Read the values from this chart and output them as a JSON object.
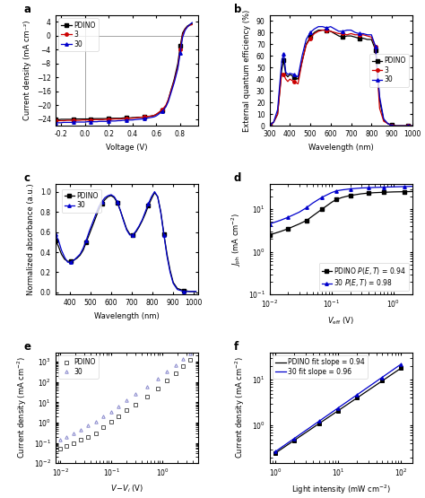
{
  "panel_a": {
    "title": "a",
    "xlabel": "Voltage (V)",
    "ylabel": "Current density (mA cm⁻²)",
    "xlim": [
      -0.25,
      0.95
    ],
    "ylim": [
      -26,
      6
    ],
    "xticks": [
      -0.2,
      0.0,
      0.2,
      0.4,
      0.6,
      0.8
    ],
    "yticks": [
      4,
      0,
      -4,
      -8,
      -12,
      -16,
      -20,
      -24
    ],
    "lines": {
      "PDINO": {
        "color": "black",
        "marker": "s",
        "x": [
          -0.25,
          -0.22,
          -0.2,
          -0.18,
          -0.15,
          -0.12,
          -0.1,
          -0.08,
          -0.05,
          -0.02,
          0.0,
          0.02,
          0.05,
          0.08,
          0.1,
          0.12,
          0.15,
          0.18,
          0.2,
          0.22,
          0.25,
          0.28,
          0.3,
          0.32,
          0.35,
          0.38,
          0.4,
          0.42,
          0.45,
          0.48,
          0.5,
          0.52,
          0.55,
          0.58,
          0.6,
          0.62,
          0.65,
          0.68,
          0.7,
          0.72,
          0.75,
          0.78,
          0.8,
          0.82,
          0.84,
          0.86,
          0.88,
          0.9
        ],
        "y": [
          -24.2,
          -24.2,
          -24.1,
          -24.1,
          -24.1,
          -24.1,
          -24.1,
          -24.0,
          -24.0,
          -24.0,
          -24.0,
          -24.0,
          -24.0,
          -23.9,
          -23.9,
          -23.9,
          -23.9,
          -23.9,
          -23.9,
          -23.8,
          -23.8,
          -23.8,
          -23.8,
          -23.7,
          -23.7,
          -23.7,
          -23.6,
          -23.6,
          -23.5,
          -23.5,
          -23.4,
          -23.3,
          -23.2,
          -23.0,
          -22.7,
          -22.2,
          -21.5,
          -20.3,
          -18.5,
          -16.0,
          -12.5,
          -8.0,
          -3.0,
          0.8,
          2.0,
          2.8,
          3.2,
          3.5
        ]
      },
      "3": {
        "color": "#cc0000",
        "marker": "o",
        "x": [
          -0.25,
          -0.22,
          -0.2,
          -0.18,
          -0.15,
          -0.12,
          -0.1,
          -0.08,
          -0.05,
          -0.02,
          0.0,
          0.02,
          0.05,
          0.08,
          0.1,
          0.12,
          0.15,
          0.18,
          0.2,
          0.22,
          0.25,
          0.28,
          0.3,
          0.32,
          0.35,
          0.38,
          0.4,
          0.42,
          0.45,
          0.48,
          0.5,
          0.52,
          0.55,
          0.58,
          0.6,
          0.62,
          0.65,
          0.68,
          0.7,
          0.72,
          0.75,
          0.78,
          0.8,
          0.82,
          0.84,
          0.86,
          0.88,
          0.9
        ],
        "y": [
          -24.5,
          -24.5,
          -24.5,
          -24.5,
          -24.4,
          -24.4,
          -24.4,
          -24.4,
          -24.4,
          -24.3,
          -24.3,
          -24.3,
          -24.3,
          -24.2,
          -24.2,
          -24.2,
          -24.2,
          -24.1,
          -24.1,
          -24.1,
          -24.0,
          -24.0,
          -24.0,
          -23.9,
          -23.9,
          -23.8,
          -23.8,
          -23.7,
          -23.6,
          -23.5,
          -23.4,
          -23.3,
          -23.2,
          -23.0,
          -22.6,
          -22.1,
          -21.3,
          -20.0,
          -18.4,
          -16.2,
          -13.0,
          -9.0,
          -4.0,
          0.2,
          1.8,
          2.6,
          3.0,
          3.2
        ]
      },
      "30": {
        "color": "#0000cc",
        "marker": "^",
        "x": [
          -0.25,
          -0.22,
          -0.2,
          -0.18,
          -0.15,
          -0.12,
          -0.1,
          -0.08,
          -0.05,
          -0.02,
          0.0,
          0.02,
          0.05,
          0.08,
          0.1,
          0.12,
          0.15,
          0.18,
          0.2,
          0.22,
          0.25,
          0.28,
          0.3,
          0.32,
          0.35,
          0.38,
          0.4,
          0.42,
          0.45,
          0.48,
          0.5,
          0.52,
          0.55,
          0.58,
          0.6,
          0.62,
          0.65,
          0.68,
          0.7,
          0.72,
          0.75,
          0.78,
          0.8,
          0.82,
          0.84,
          0.86,
          0.88,
          0.9
        ],
        "y": [
          -25.1,
          -25.1,
          -25.1,
          -25.0,
          -25.0,
          -25.0,
          -25.0,
          -24.9,
          -24.9,
          -24.9,
          -24.9,
          -24.8,
          -24.8,
          -24.8,
          -24.8,
          -24.7,
          -24.7,
          -24.7,
          -24.6,
          -24.6,
          -24.6,
          -24.5,
          -24.5,
          -24.4,
          -24.4,
          -24.3,
          -24.3,
          -24.2,
          -24.1,
          -24.0,
          -23.9,
          -23.8,
          -23.6,
          -23.4,
          -23.1,
          -22.6,
          -21.8,
          -20.5,
          -19.0,
          -16.8,
          -13.5,
          -9.5,
          -5.0,
          -0.5,
          1.5,
          2.5,
          3.2,
          3.8
        ]
      }
    }
  },
  "panel_b": {
    "title": "b",
    "xlabel": "Wavelength (nm)",
    "ylabel": "External quantum efficiency (%)",
    "xlim": [
      300,
      1000
    ],
    "ylim": [
      0,
      95
    ],
    "xticks": [
      300,
      400,
      500,
      600,
      700,
      800,
      900,
      1000
    ],
    "yticks": [
      0,
      10,
      20,
      30,
      40,
      50,
      60,
      70,
      80,
      90
    ],
    "lines": {
      "PDINO": {
        "color": "black",
        "marker": "s",
        "x": [
          300,
          320,
          340,
          360,
          370,
          380,
          390,
          400,
          420,
          440,
          460,
          480,
          500,
          520,
          540,
          560,
          580,
          600,
          620,
          640,
          660,
          680,
          700,
          720,
          740,
          760,
          780,
          800,
          820,
          840,
          860,
          880,
          900,
          920,
          940,
          960,
          980,
          1000
        ],
        "y": [
          1,
          3,
          10,
          48,
          56,
          44,
          42,
          44,
          42,
          40,
          55,
          70,
          76,
          80,
          82,
          82,
          82,
          81,
          79,
          77,
          76,
          77,
          77,
          76,
          75,
          75,
          74,
          74,
          65,
          22,
          5,
          2,
          1,
          0,
          0,
          0,
          0,
          0
        ]
      },
      "3": {
        "color": "#cc0000",
        "marker": "o",
        "x": [
          300,
          320,
          340,
          360,
          370,
          380,
          390,
          400,
          420,
          440,
          460,
          480,
          500,
          520,
          540,
          560,
          580,
          600,
          620,
          640,
          660,
          680,
          700,
          720,
          740,
          760,
          780,
          800,
          820,
          840,
          860,
          880,
          900,
          920,
          940,
          960,
          980,
          1000
        ],
        "y": [
          1,
          3,
          10,
          45,
          44,
          40,
          38,
          40,
          38,
          36,
          55,
          69,
          75,
          79,
          81,
          82,
          82,
          81,
          80,
          79,
          79,
          78,
          79,
          78,
          78,
          78,
          77,
          76,
          68,
          15,
          4,
          2,
          0,
          0,
          0,
          0,
          0,
          0
        ]
      },
      "30": {
        "color": "#0000cc",
        "marker": "^",
        "x": [
          300,
          320,
          340,
          360,
          370,
          380,
          390,
          400,
          420,
          440,
          460,
          480,
          500,
          520,
          540,
          560,
          580,
          600,
          620,
          640,
          660,
          680,
          700,
          720,
          740,
          760,
          780,
          800,
          820,
          840,
          860,
          880,
          900,
          920,
          940,
          960,
          980,
          1000
        ],
        "y": [
          1,
          3,
          14,
          55,
          62,
          46,
          44,
          45,
          44,
          42,
          60,
          74,
          80,
          83,
          85,
          85,
          84,
          85,
          83,
          81,
          81,
          82,
          82,
          80,
          79,
          79,
          78,
          78,
          68,
          25,
          6,
          2,
          0,
          0,
          0,
          0,
          0,
          0
        ]
      }
    }
  },
  "panel_c": {
    "title": "c",
    "xlabel": "Wavelength (nm)",
    "ylabel": "Normalized absorbance (a.u.)",
    "xlim": [
      330,
      1020
    ],
    "ylim": [
      -0.02,
      1.08
    ],
    "xticks": [
      400,
      500,
      600,
      700,
      800,
      900,
      1000
    ],
    "yticks": [
      0.0,
      0.2,
      0.4,
      0.6,
      0.8,
      1.0
    ],
    "lines": {
      "PDINO": {
        "color": "black",
        "marker": "s",
        "x": [
          330,
          345,
          360,
          375,
          390,
          405,
          420,
          435,
          450,
          465,
          480,
          495,
          510,
          525,
          540,
          555,
          570,
          585,
          600,
          615,
          630,
          645,
          660,
          675,
          690,
          705,
          720,
          735,
          750,
          765,
          780,
          795,
          810,
          825,
          840,
          855,
          870,
          885,
          900,
          920,
          950,
          980,
          1010
        ],
        "y": [
          0.52,
          0.46,
          0.38,
          0.33,
          0.31,
          0.31,
          0.32,
          0.34,
          0.37,
          0.42,
          0.5,
          0.58,
          0.66,
          0.74,
          0.82,
          0.88,
          0.92,
          0.95,
          0.96,
          0.94,
          0.89,
          0.81,
          0.72,
          0.63,
          0.58,
          0.57,
          0.6,
          0.65,
          0.71,
          0.78,
          0.86,
          0.93,
          0.99,
          0.95,
          0.8,
          0.58,
          0.38,
          0.22,
          0.1,
          0.04,
          0.02,
          0.01,
          0.01
        ]
      },
      "30": {
        "color": "#0000cc",
        "marker": "^",
        "x": [
          330,
          345,
          360,
          375,
          390,
          405,
          420,
          435,
          450,
          465,
          480,
          495,
          510,
          525,
          540,
          555,
          570,
          585,
          600,
          615,
          630,
          645,
          660,
          675,
          690,
          705,
          720,
          735,
          750,
          765,
          780,
          795,
          810,
          825,
          840,
          855,
          870,
          885,
          900,
          920,
          950,
          980,
          1010
        ],
        "y": [
          0.58,
          0.52,
          0.42,
          0.35,
          0.3,
          0.3,
          0.32,
          0.35,
          0.38,
          0.44,
          0.52,
          0.61,
          0.69,
          0.77,
          0.85,
          0.9,
          0.94,
          0.96,
          0.97,
          0.95,
          0.9,
          0.81,
          0.71,
          0.62,
          0.57,
          0.57,
          0.61,
          0.66,
          0.72,
          0.8,
          0.88,
          0.95,
          1.0,
          0.95,
          0.79,
          0.57,
          0.36,
          0.2,
          0.09,
          0.03,
          0.01,
          0.01,
          0.01
        ]
      }
    }
  },
  "panel_d": {
    "title": "d",
    "xlabel": "$V_{\\mathrm{eff}}$ (V)",
    "ylabel": "$J_{\\mathrm{ph}}$ (mA cm$^{-2}$)",
    "xlim_log": [
      0.01,
      2.0
    ],
    "ylim_log": [
      0.1,
      40
    ],
    "lines": {
      "PDINO $P(E,T)$ = 0.94": {
        "color": "black",
        "marker": "s",
        "x": [
          0.01,
          0.015,
          0.02,
          0.03,
          0.04,
          0.05,
          0.07,
          0.1,
          0.12,
          0.15,
          0.2,
          0.3,
          0.4,
          0.5,
          0.7,
          1.0,
          1.5,
          2.0
        ],
        "y": [
          2.5,
          3.0,
          3.5,
          4.5,
          5.5,
          7.0,
          10.0,
          14.5,
          17.0,
          19.0,
          21.0,
          23.0,
          24.0,
          24.5,
          25.0,
          25.5,
          25.8,
          26.0
        ]
      },
      "30 $P(E,T)$ = 0.98": {
        "color": "#0000cc",
        "marker": "^",
        "x": [
          0.01,
          0.015,
          0.02,
          0.03,
          0.04,
          0.05,
          0.07,
          0.1,
          0.12,
          0.15,
          0.2,
          0.3,
          0.4,
          0.5,
          0.7,
          1.0,
          1.5,
          2.0
        ],
        "y": [
          4.5,
          5.5,
          6.5,
          8.5,
          11.0,
          14.0,
          19.0,
          24.5,
          27.0,
          28.5,
          30.0,
          31.5,
          32.0,
          32.5,
          33.0,
          33.5,
          34.0,
          34.5
        ]
      }
    }
  },
  "panel_e": {
    "title": "e",
    "xlabel": "$V\\!-\\!V_i$ (V)",
    "ylabel": "Current density (mA cm$^{-2}$)",
    "xlim_log": [
      0.008,
      5.0
    ],
    "ylim_log": [
      0.01,
      3000
    ],
    "lines": {
      "PDINO": {
        "color": "#555555",
        "marker": "s",
        "filled": false,
        "x": [
          0.01,
          0.013,
          0.018,
          0.025,
          0.035,
          0.05,
          0.07,
          0.1,
          0.14,
          0.2,
          0.3,
          0.5,
          0.8,
          1.2,
          1.8,
          2.5,
          3.5
        ],
        "y": [
          0.05,
          0.07,
          0.1,
          0.14,
          0.2,
          0.3,
          0.6,
          1.1,
          2.0,
          4.0,
          8.0,
          20.0,
          50.0,
          120.0,
          280.0,
          600.0,
          1200.0
        ]
      },
      "30": {
        "color": "#8888cc",
        "marker": "^",
        "filled": false,
        "x": [
          0.01,
          0.013,
          0.018,
          0.025,
          0.035,
          0.05,
          0.07,
          0.1,
          0.14,
          0.2,
          0.3,
          0.5,
          0.8,
          1.2,
          1.8,
          2.5,
          3.5
        ],
        "y": [
          0.15,
          0.2,
          0.3,
          0.45,
          0.7,
          1.1,
          2.0,
          3.5,
          6.5,
          13.0,
          25.0,
          60.0,
          150.0,
          340.0,
          700.0,
          1400.0,
          2500.0
        ]
      }
    }
  },
  "panel_f": {
    "title": "f",
    "xlabel": "Light intensity (mW cm$^{-2}$)",
    "ylabel": "Current density (mA cm$^{-2}$)",
    "xlim_log": [
      0.8,
      150
    ],
    "ylim_log": [
      0.15,
      40
    ],
    "lines": {
      "PDINO fit slope = 0.94": {
        "color": "black",
        "marker": "s",
        "x": [
          1,
          2,
          5,
          10,
          20,
          50,
          100
        ],
        "y": [
          0.25,
          0.47,
          1.1,
          2.1,
          4.0,
          9.5,
          18.0
        ],
        "fit_x": [
          1,
          100
        ],
        "fit_y": [
          0.25,
          18.0
        ]
      },
      "30 fit slope = 0.96": {
        "color": "#0000cc",
        "marker": "^",
        "x": [
          1,
          2,
          5,
          10,
          20,
          50,
          100
        ],
        "y": [
          0.27,
          0.52,
          1.25,
          2.4,
          4.6,
          11.0,
          22.0
        ],
        "fit_x": [
          1,
          100
        ],
        "fit_y": [
          0.27,
          22.0
        ]
      }
    }
  }
}
